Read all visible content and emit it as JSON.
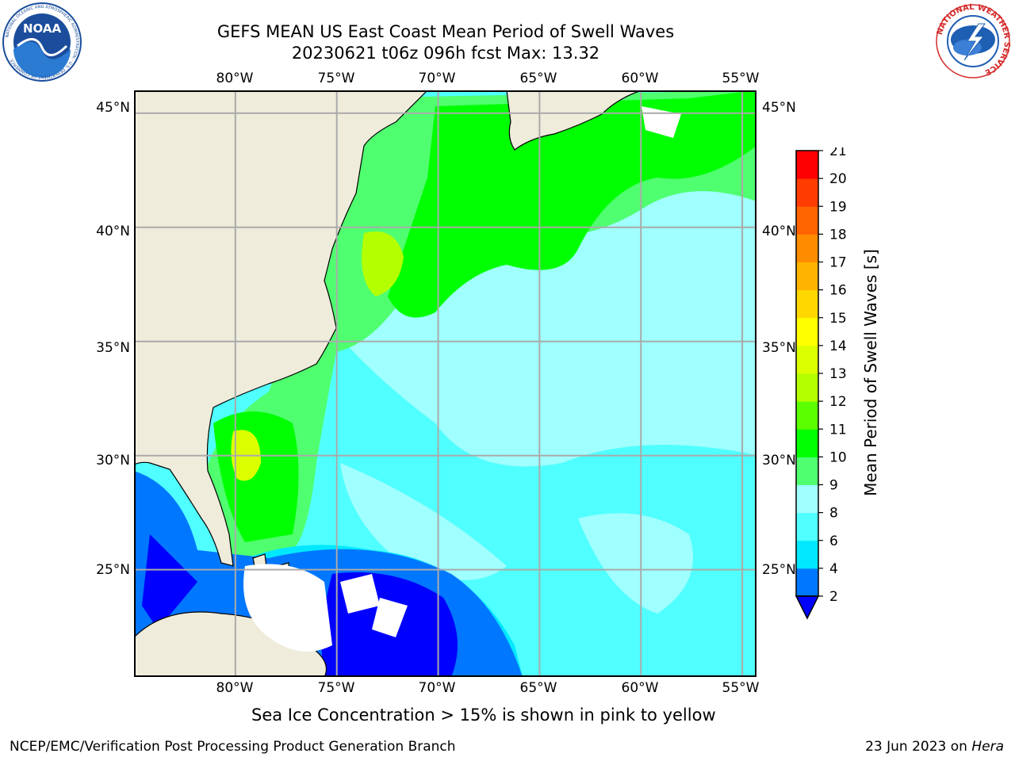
{
  "header": {
    "title_line1": "GEFS MEAN US East Coast Mean Period of Swell Waves",
    "title_line2": "20230621 t06z 096h fcst   Max: 13.32"
  },
  "logos": {
    "left": {
      "text": "NOAA",
      "ring_text": "NATIONAL OCEANIC AND ATMOSPHERIC ADMINISTRATION · U.S. DEPARTMENT OF COMMERCE",
      "colors": [
        "#1b4d9c",
        "#ffffff",
        "#2a7bd1"
      ]
    },
    "right": {
      "ring_text": "NATIONAL WEATHER SERVICE",
      "colors": [
        "#d42a2a",
        "#ffffff",
        "#1f5fb3"
      ]
    }
  },
  "map": {
    "projection": "lat-lon",
    "lon_range": [
      -85,
      -54.3
    ],
    "lat_range": [
      20.3,
      46
    ],
    "lon_ticks": [
      "80°W",
      "75°W",
      "70°W",
      "65°W",
      "60°W",
      "55°W"
    ],
    "lat_ticks": [
      "45°N",
      "40°N",
      "35°N",
      "30°N",
      "25°N"
    ],
    "gridlines": true,
    "land_color": "#efecdc",
    "grid_color": "#aaaaaa"
  },
  "colorbar": {
    "title": "Mean Period of Swell Waves [s]",
    "tick_labels": [
      "2",
      "4",
      "6",
      "8",
      "9",
      "10",
      "11",
      "12",
      "13",
      "14",
      "15",
      "16",
      "17",
      "18",
      "19",
      "20",
      "21"
    ],
    "level_colors": [
      "#0000ff",
      "#0077ff",
      "#00e8ff",
      "#50ffff",
      "#a0ffff",
      "#50ff70",
      "#00ff00",
      "#5cff00",
      "#b4ff00",
      "#dcff00",
      "#ffff00",
      "#ffd800",
      "#ffb400",
      "#ff8c00",
      "#ff6400",
      "#ff3c00",
      "#ff0000"
    ],
    "extend": "min"
  },
  "caption": "Sea Ice Concentration > 15% is shown in pink to yellow",
  "footer": {
    "left": "NCEP/EMC/Verification Post Processing Product Generation Branch",
    "right_date": "23 Jun 2023 on",
    "right_host": "Hera"
  }
}
